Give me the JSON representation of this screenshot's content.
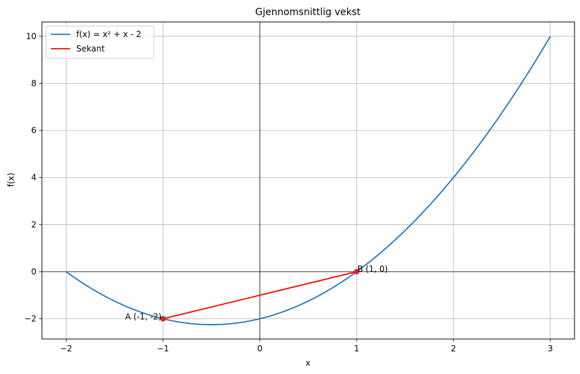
{
  "chart_data": {
    "type": "line",
    "title": "Gjennomsnittlig vekst",
    "xlabel": "x",
    "ylabel": "f(x)",
    "xlim": [
      -2.25,
      3.25
    ],
    "ylim": [
      -2.86,
      10.61
    ],
    "xticks": [
      -2,
      -1,
      0,
      1,
      2,
      3
    ],
    "yticks": [
      -2,
      0,
      2,
      4,
      6,
      8,
      10
    ],
    "xtick_labels": [
      "−2",
      "−1",
      "0",
      "1",
      "2",
      "3"
    ],
    "ytick_labels": [
      "−2",
      "0",
      "2",
      "4",
      "6",
      "8",
      "10"
    ],
    "grid": true,
    "legend_position": "top-left",
    "series": [
      {
        "name": "f(x) = x² + x - 2",
        "color": "#1f77b4",
        "function": "x^2 + x - 2",
        "x_range": [
          -2,
          3
        ]
      },
      {
        "name": "Sekant",
        "color": "#ff0000",
        "x": [
          -1,
          1
        ],
        "y": [
          -2,
          0
        ]
      }
    ],
    "points": [
      {
        "label": "A (-1, -2)",
        "x": -1,
        "y": -2,
        "color": "#d62728",
        "label_side": "left"
      },
      {
        "label": "B (1, 0)",
        "x": 1,
        "y": 0,
        "color": "#d62728",
        "label_side": "right"
      }
    ]
  }
}
